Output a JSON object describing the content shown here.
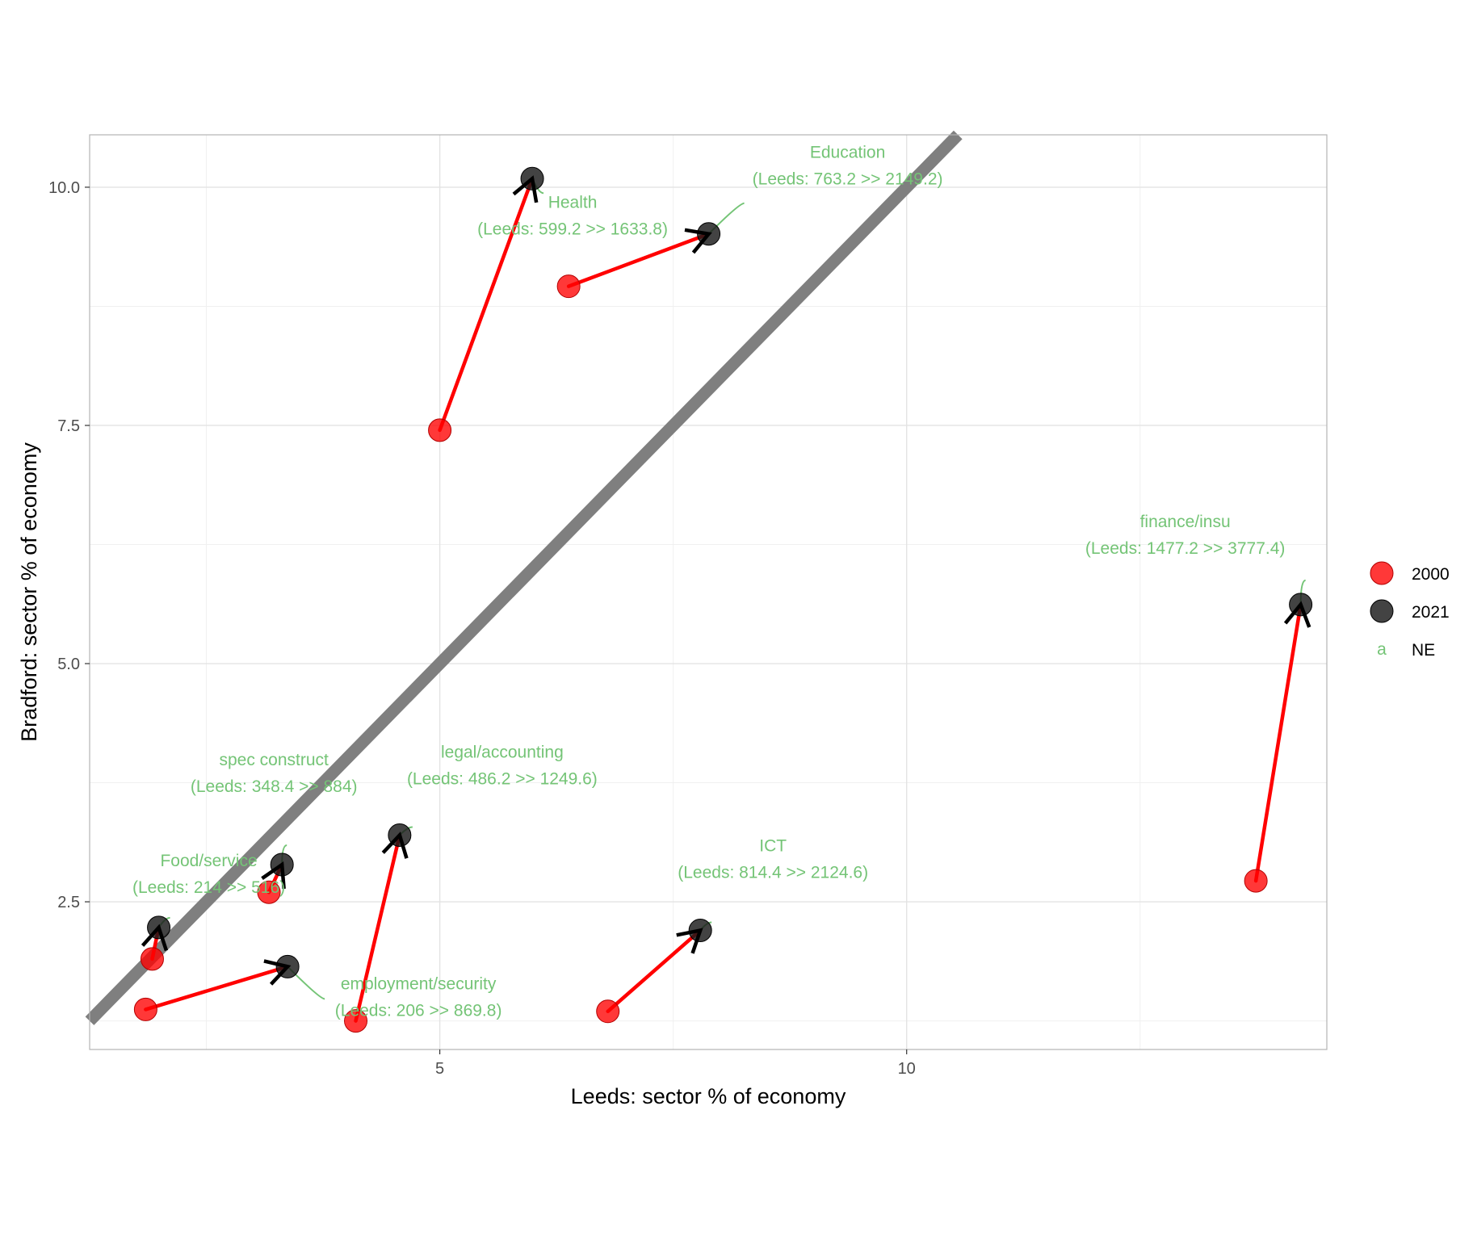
{
  "chart_data": {
    "type": "scatter",
    "xlabel": "Leeds: sector % of economy",
    "ylabel": "Bradford: sector % of economy",
    "xlim": [
      1.25,
      14.5
    ],
    "ylim": [
      0.95,
      10.55
    ],
    "x_ticks": [
      5,
      10
    ],
    "y_ticks": [
      2.5,
      5.0,
      7.5,
      10.0
    ],
    "y_tick_labels": [
      "2.5",
      "5.0",
      "7.5",
      "10.0"
    ],
    "x_minor_ticks": [
      2.5,
      7.5,
      12.5
    ],
    "y_minor_ticks": [
      1.25,
      3.75,
      6.25,
      8.75
    ],
    "reference_line": {
      "slope": 1,
      "intercept": 0,
      "color": "#7f7f7f"
    },
    "colors": {
      "2000": "#ff0000",
      "2021": "#1a1a1a",
      "arrow": "#ff0000",
      "annotation": "#74c476"
    },
    "legend": {
      "position": "right",
      "items": [
        {
          "label": "2000",
          "marker": "point",
          "color": "#ff0000"
        },
        {
          "label": "2021",
          "marker": "point",
          "color": "#1a1a1a"
        },
        {
          "label": "NE",
          "marker": "text",
          "key_text": "a",
          "color": "#74c476"
        }
      ]
    },
    "series": [
      {
        "name": "2000",
        "points": [
          {
            "sector": "Health",
            "x": 5.0,
            "y": 7.45
          },
          {
            "sector": "Education",
            "x": 6.38,
            "y": 8.96
          },
          {
            "sector": "finance/insu",
            "x": 13.74,
            "y": 2.72
          },
          {
            "sector": "legal/accounting",
            "x": 4.1,
            "y": 1.25
          },
          {
            "sector": "ICT",
            "x": 6.8,
            "y": 1.35
          },
          {
            "sector": "spec construct",
            "x": 3.17,
            "y": 2.6
          },
          {
            "sector": "Food/service",
            "x": 1.92,
            "y": 1.9
          },
          {
            "sector": "employment/security",
            "x": 1.85,
            "y": 1.37
          }
        ]
      },
      {
        "name": "2021",
        "points": [
          {
            "sector": "Health",
            "x": 5.99,
            "y": 10.09
          },
          {
            "sector": "Education",
            "x": 7.88,
            "y": 9.51
          },
          {
            "sector": "finance/insu",
            "x": 14.22,
            "y": 5.62
          },
          {
            "sector": "legal/accounting",
            "x": 4.57,
            "y": 3.2
          },
          {
            "sector": "ICT",
            "x": 7.79,
            "y": 2.2
          },
          {
            "sector": "spec construct",
            "x": 3.31,
            "y": 2.89
          },
          {
            "sector": "Food/service",
            "x": 1.99,
            "y": 2.23
          },
          {
            "sector": "employment/security",
            "x": 3.37,
            "y": 1.82
          }
        ]
      }
    ],
    "annotations": [
      {
        "sector": "Health",
        "line1": "Health",
        "line2": "(Leeds: 599.2 >> 1633.8)"
      },
      {
        "sector": "Education",
        "line1": "Education",
        "line2": "(Leeds: 763.2 >> 2149.2)"
      },
      {
        "sector": "finance/insu",
        "line1": "finance/insu",
        "line2": "(Leeds: 1477.2 >> 3777.4)"
      },
      {
        "sector": "legal/accounting",
        "line1": "legal/accounting",
        "line2": "(Leeds: 486.2 >> 1249.6)"
      },
      {
        "sector": "ICT",
        "line1": "ICT",
        "line2": "(Leeds: 814.4 >> 2124.6)"
      },
      {
        "sector": "spec construct",
        "line1": "spec construct",
        "line2": "(Leeds: 348.4 >> 884)"
      },
      {
        "sector": "Food/service",
        "line1": "Food/service",
        "line2": "(Leeds: 214 >> 516)"
      },
      {
        "sector": "employment/security",
        "line1": "employment/security",
        "line2": "(Leeds: 206 >> 869.8)"
      }
    ]
  }
}
